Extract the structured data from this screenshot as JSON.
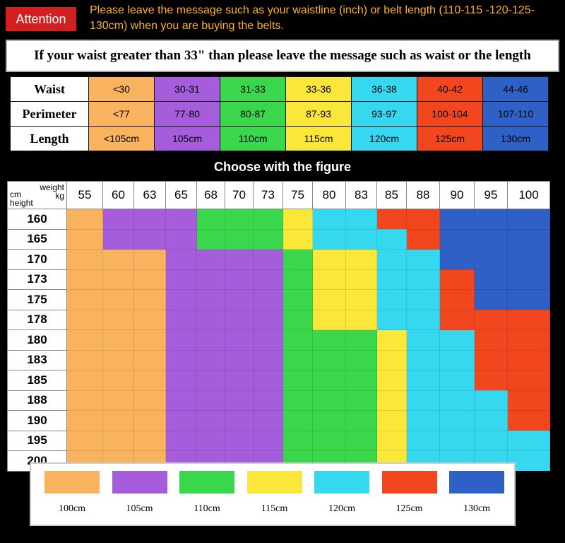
{
  "attention": {
    "label": "Attention",
    "message": "Please leave the message such as your waistline (inch) or belt length (110-115 -120-125-130cm) when you are buying the belts."
  },
  "banner": "If your waist greater than 33\" than please leave the message such as waist or the length",
  "size_table": {
    "row_headers": [
      "Waist",
      "Perimeter",
      "Length"
    ],
    "columns": [
      {
        "color": "#f9b25e",
        "waist": "<30",
        "perimeter": "<77",
        "length": "<105cm"
      },
      {
        "color": "#a65ddc",
        "waist": "30-31",
        "perimeter": "77-80",
        "length": "105cm"
      },
      {
        "color": "#3ad74c",
        "waist": "31-33",
        "perimeter": "80-87",
        "length": "110cm"
      },
      {
        "color": "#fbe63a",
        "waist": "33-36",
        "perimeter": "87-93",
        "length": "115cm"
      },
      {
        "color": "#36d8ef",
        "waist": "36-38",
        "perimeter": "93-97",
        "length": "120cm"
      },
      {
        "color": "#f2461f",
        "waist": "40-42",
        "perimeter": "100-104",
        "length": "125cm"
      },
      {
        "color": "#2e60c6",
        "waist": "44-46",
        "perimeter": "107-110",
        "length": "130cm"
      }
    ]
  },
  "figure_title": "Choose with the figure",
  "chart_data": {
    "type": "heatmap",
    "corner": {
      "weight": "weight",
      "kg": "kg",
      "cm": "cm",
      "height": "height"
    },
    "x": [
      55,
      60,
      63,
      65,
      68,
      70,
      73,
      75,
      80,
      83,
      85,
      88,
      90,
      95,
      100
    ],
    "y": [
      160,
      165,
      170,
      173,
      175,
      178,
      180,
      183,
      185,
      188,
      190,
      195,
      200
    ],
    "palette": [
      "#000000",
      "#f9b25e",
      "#a65ddc",
      "#3ad74c",
      "#fbe63a",
      "#36d8ef",
      "#f2461f",
      "#2e60c6"
    ],
    "values": [
      [
        1,
        2,
        2,
        2,
        3,
        3,
        3,
        4,
        5,
        5,
        6,
        6,
        7,
        7,
        7
      ],
      [
        1,
        2,
        2,
        2,
        3,
        3,
        3,
        4,
        5,
        5,
        5,
        6,
        7,
        7,
        7
      ],
      [
        1,
        1,
        1,
        2,
        2,
        2,
        2,
        3,
        4,
        4,
        5,
        5,
        7,
        7,
        7
      ],
      [
        1,
        1,
        1,
        2,
        2,
        2,
        2,
        3,
        4,
        4,
        5,
        5,
        6,
        7,
        7
      ],
      [
        1,
        1,
        1,
        2,
        2,
        2,
        2,
        3,
        4,
        4,
        5,
        5,
        6,
        7,
        7
      ],
      [
        1,
        1,
        1,
        2,
        2,
        2,
        2,
        3,
        4,
        4,
        5,
        5,
        6,
        6,
        6
      ],
      [
        1,
        1,
        1,
        2,
        2,
        2,
        2,
        3,
        3,
        3,
        4,
        5,
        5,
        6,
        6
      ],
      [
        1,
        1,
        1,
        2,
        2,
        2,
        2,
        3,
        3,
        3,
        4,
        5,
        5,
        6,
        6
      ],
      [
        1,
        1,
        1,
        2,
        2,
        2,
        2,
        3,
        3,
        3,
        4,
        5,
        5,
        6,
        6
      ],
      [
        1,
        1,
        1,
        2,
        2,
        2,
        2,
        3,
        3,
        3,
        4,
        5,
        5,
        5,
        6
      ],
      [
        1,
        1,
        1,
        2,
        2,
        2,
        2,
        3,
        3,
        3,
        4,
        5,
        5,
        5,
        6
      ],
      [
        1,
        1,
        1,
        2,
        2,
        2,
        2,
        3,
        3,
        3,
        4,
        5,
        5,
        5,
        5
      ],
      [
        1,
        1,
        1,
        2,
        2,
        2,
        2,
        3,
        3,
        3,
        4,
        5,
        5,
        5,
        5
      ]
    ]
  },
  "legend": [
    {
      "color": "#f9b25e",
      "label": "100cm"
    },
    {
      "color": "#a65ddc",
      "label": "105cm"
    },
    {
      "color": "#3ad74c",
      "label": "110cm"
    },
    {
      "color": "#fbe63a",
      "label": "115cm"
    },
    {
      "color": "#36d8ef",
      "label": "120cm"
    },
    {
      "color": "#f2461f",
      "label": "125cm"
    },
    {
      "color": "#2e60c6",
      "label": "130cm"
    }
  ]
}
